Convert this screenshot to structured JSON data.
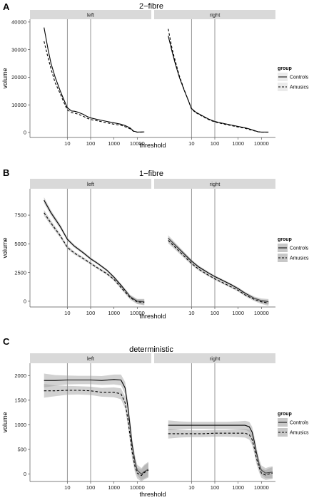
{
  "chart_data": [
    {
      "type": "line",
      "panel_label": "A",
      "title": "2−fibre",
      "xlabel": "threshold",
      "ylabel": "volume",
      "x_scale": "log10",
      "xlim": [
        0.25,
        40000
      ],
      "ylim": [
        -1800,
        41000
      ],
      "xticks": [
        10,
        100,
        1000,
        10000
      ],
      "xtick_labels": [
        "10",
        "100",
        "1000",
        "10000"
      ],
      "yticks": [
        0,
        10000,
        20000,
        30000,
        40000
      ],
      "ytick_labels": [
        "0",
        "10000",
        "20000",
        "30000",
        "40000"
      ],
      "vlines": [
        10,
        100
      ],
      "confidence_band": false,
      "facets": [
        {
          "strip": "left",
          "series": [
            {
              "name": "Controls",
              "line_style": "solid",
              "x": [
                1,
                1.5,
                2,
                3,
                5,
                7,
                10,
                15,
                20,
                30,
                50,
                70,
                100,
                200,
                300,
                500,
                1000,
                2000,
                3000,
                5000,
                7000,
                10000,
                20000
              ],
              "y": [
                38000,
                30000,
                25000,
                20000,
                15000,
                12000,
                9000,
                7800,
                7700,
                7300,
                6500,
                5800,
                5300,
                4700,
                4400,
                4000,
                3500,
                3000,
                2500,
                1600,
                500,
                150,
                200
              ]
            },
            {
              "name": "Amusics",
              "line_style": "dashed",
              "x": [
                1,
                1.5,
                2,
                3,
                5,
                7,
                10,
                15,
                20,
                30,
                50,
                70,
                100,
                200,
                300,
                500,
                1000,
                2000,
                3000,
                5000,
                7000,
                10000,
                20000
              ],
              "y": [
                33000,
                27000,
                23000,
                18000,
                14000,
                11000,
                8200,
                7200,
                7000,
                6600,
                5800,
                5200,
                4700,
                4200,
                3900,
                3500,
                3000,
                2600,
                2100,
                1300,
                400,
                100,
                150
              ]
            }
          ]
        },
        {
          "strip": "right",
          "series": [
            {
              "name": "Controls",
              "line_style": "solid",
              "x": [
                1,
                1.5,
                2,
                3,
                5,
                7,
                10,
                15,
                20,
                30,
                50,
                70,
                100,
                200,
                300,
                500,
                1000,
                2000,
                3000,
                5000,
                7000,
                10000,
                20000
              ],
              "y": [
                35000,
                29000,
                25000,
                20000,
                15000,
                12000,
                8700,
                7400,
                6800,
                6000,
                5000,
                4500,
                4000,
                3400,
                3100,
                2700,
                2200,
                1700,
                1300,
                700,
                300,
                150,
                150
              ]
            },
            {
              "name": "Amusics",
              "line_style": "dashed",
              "x": [
                1,
                1.5,
                2,
                3,
                5,
                7,
                10,
                15,
                20,
                30,
                50,
                70,
                100,
                200,
                300,
                500,
                1000,
                2000,
                3000,
                5000,
                7000,
                10000,
                20000
              ],
              "y": [
                37500,
                30000,
                26000,
                20500,
                15200,
                12000,
                8500,
                7200,
                6600,
                5800,
                4800,
                4300,
                3800,
                3200,
                2900,
                2500,
                2000,
                1500,
                1100,
                600,
                250,
                100,
                100
              ]
            }
          ]
        }
      ],
      "legend": {
        "title": "group",
        "entries": [
          "Controls",
          "Amusics"
        ],
        "placement": "right"
      }
    },
    {
      "type": "line",
      "panel_label": "B",
      "title": "1−fibre",
      "xlabel": "threshold",
      "ylabel": "volume",
      "x_scale": "log10",
      "xlim": [
        0.25,
        40000
      ],
      "ylim": [
        -500,
        9800
      ],
      "xticks": [
        10,
        100,
        1000,
        10000
      ],
      "xtick_labels": [
        "10",
        "100",
        "1000",
        "10000"
      ],
      "yticks": [
        0,
        2500,
        5000,
        7500
      ],
      "ytick_labels": [
        "0",
        "2500",
        "5000",
        "7500"
      ],
      "vlines": [
        10,
        100
      ],
      "confidence_band": true,
      "facets": [
        {
          "strip": "left",
          "series": [
            {
              "name": "Controls",
              "line_style": "solid",
              "x": [
                1,
                2,
                5,
                10,
                20,
                50,
                100,
                200,
                500,
                1000,
                2000,
                5000,
                10000,
                20000
              ],
              "y": [
                8800,
                7700,
                6500,
                5400,
                4800,
                4200,
                3700,
                3300,
                2700,
                2100,
                1400,
                400,
                0,
                -50
              ],
              "band": [
                260,
                220,
                180,
                150,
                130,
                120,
                110,
                110,
                110,
                120,
                130,
                160,
                200,
                250
              ]
            },
            {
              "name": "Amusics",
              "line_style": "dashed",
              "x": [
                1,
                2,
                5,
                10,
                20,
                50,
                100,
                200,
                500,
                1000,
                2000,
                5000,
                10000,
                20000
              ],
              "y": [
                7700,
                6800,
                5700,
                4700,
                4200,
                3700,
                3300,
                2900,
                2400,
                1900,
                1200,
                300,
                -50,
                -100
              ],
              "band": [
                260,
                220,
                180,
                150,
                130,
                120,
                110,
                110,
                110,
                120,
                130,
                160,
                200,
                250
              ]
            }
          ]
        },
        {
          "strip": "right",
          "series": [
            {
              "name": "Controls",
              "line_style": "solid",
              "x": [
                1,
                2,
                5,
                10,
                20,
                50,
                100,
                200,
                500,
                1000,
                2000,
                5000,
                10000,
                20000
              ],
              "y": [
                5500,
                4900,
                4100,
                3500,
                3000,
                2500,
                2150,
                1850,
                1450,
                1100,
                700,
                250,
                50,
                -50
              ],
              "band": [
                250,
                210,
                170,
                140,
                120,
                110,
                100,
                100,
                100,
                110,
                120,
                150,
                190,
                240
              ]
            },
            {
              "name": "Amusics",
              "line_style": "dashed",
              "x": [
                1,
                2,
                5,
                10,
                20,
                50,
                100,
                200,
                500,
                1000,
                2000,
                5000,
                10000,
                20000
              ],
              "y": [
                5300,
                4700,
                3900,
                3300,
                2800,
                2300,
                1950,
                1650,
                1250,
                950,
                550,
                150,
                -50,
                -150
              ],
              "band": [
                250,
                210,
                170,
                140,
                120,
                110,
                100,
                100,
                100,
                110,
                120,
                150,
                190,
                240
              ]
            }
          ]
        }
      ],
      "legend": {
        "title": "group",
        "entries": [
          "Controls",
          "Amusics"
        ],
        "placement": "right"
      }
    },
    {
      "type": "line",
      "panel_label": "C",
      "title": "deterministic",
      "xlabel": "threshold",
      "ylabel": "volume",
      "x_scale": "log10",
      "xlim": [
        0.25,
        40000
      ],
      "ylim": [
        -150,
        2250
      ],
      "xticks": [
        10,
        100,
        1000,
        10000
      ],
      "xtick_labels": [
        "10",
        "100",
        "1000",
        "10000"
      ],
      "yticks": [
        0,
        500,
        1000,
        1500,
        2000
      ],
      "ytick_labels": [
        "0",
        "500",
        "1000",
        "1500",
        "2000"
      ],
      "vlines": [
        10,
        100
      ],
      "confidence_band": true,
      "facets": [
        {
          "strip": "left",
          "series": [
            {
              "name": "Controls",
              "line_style": "solid",
              "x": [
                1,
                3,
                10,
                30,
                100,
                300,
                1000,
                2000,
                3000,
                4000,
                5000,
                6000,
                8000,
                10000,
                15000,
                20000,
                30000
              ],
              "y": [
                1900,
                1900,
                1910,
                1910,
                1910,
                1900,
                1920,
                1910,
                1750,
                1350,
                950,
                600,
                250,
                80,
                0,
                50,
                100
              ],
              "band": [
                140,
                110,
                90,
                85,
                85,
                90,
                100,
                110,
                120,
                130,
                130,
                130,
                120,
                110,
                120,
                140,
                150
              ]
            },
            {
              "name": "Amusics",
              "line_style": "dashed",
              "x": [
                1,
                3,
                10,
                30,
                100,
                300,
                1000,
                2000,
                3000,
                4000,
                5000,
                6000,
                8000,
                10000,
                15000,
                20000,
                30000
              ],
              "y": [
                1690,
                1690,
                1700,
                1700,
                1690,
                1660,
                1660,
                1630,
                1450,
                1100,
                750,
                450,
                150,
                20,
                -30,
                30,
                80
              ],
              "band": [
                140,
                110,
                90,
                85,
                85,
                90,
                100,
                110,
                120,
                130,
                130,
                130,
                120,
                110,
                120,
                140,
                150
              ]
            }
          ]
        },
        {
          "strip": "right",
          "series": [
            {
              "name": "Controls",
              "line_style": "solid",
              "x": [
                1,
                3,
                10,
                30,
                100,
                300,
                1000,
                2000,
                3000,
                4000,
                5000,
                6000,
                8000,
                10000,
                15000,
                20000,
                30000
              ],
              "y": [
                990,
                990,
                990,
                990,
                990,
                990,
                990,
                990,
                960,
                850,
                650,
                450,
                200,
                80,
                20,
                30,
                40
              ],
              "band": [
                100,
                80,
                70,
                70,
                70,
                70,
                80,
                90,
                100,
                110,
                110,
                110,
                100,
                95,
                100,
                110,
                120
              ]
            },
            {
              "name": "Amusics",
              "line_style": "dashed",
              "x": [
                1,
                3,
                10,
                30,
                100,
                300,
                1000,
                2000,
                3000,
                4000,
                5000,
                6000,
                8000,
                10000,
                15000,
                20000,
                30000
              ],
              "y": [
                820,
                820,
                820,
                820,
                830,
                830,
                830,
                830,
                800,
                700,
                520,
                330,
                130,
                20,
                -20,
                0,
                20
              ],
              "band": [
                100,
                80,
                70,
                70,
                70,
                70,
                80,
                90,
                100,
                110,
                110,
                110,
                100,
                95,
                100,
                110,
                120
              ]
            }
          ]
        }
      ],
      "legend": {
        "title": "group",
        "entries": [
          "Controls",
          "Amusics"
        ],
        "placement": "right"
      }
    }
  ]
}
